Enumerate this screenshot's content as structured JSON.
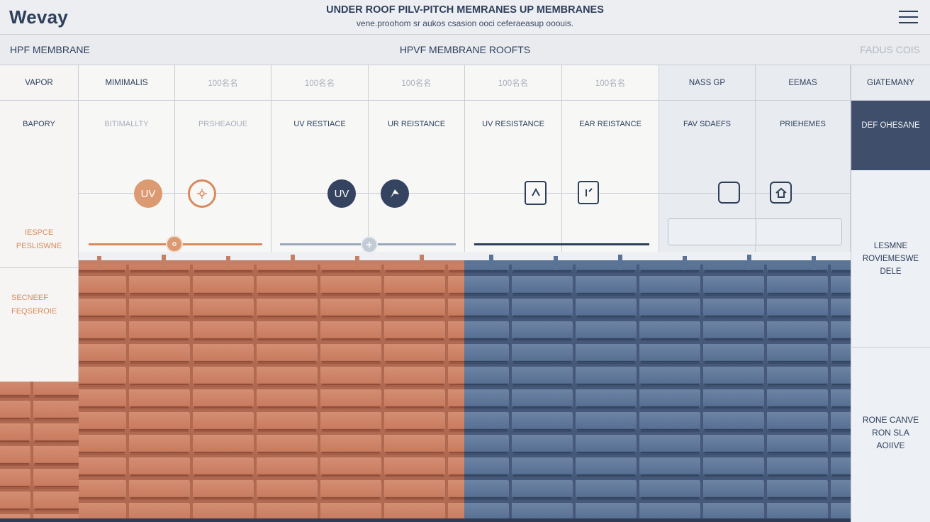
{
  "app": {
    "logo": "Wevay",
    "title": "UNDER ROOF PILV-PITCH MEMRANES UP MEMBRANES",
    "subtitle": "vene.proohom sr aukos csasion ooci ceferaeasup ooouis."
  },
  "subheader": {
    "left": "HPF MEMBRANE",
    "center": "HPVF MEMBRANE ROOFTS",
    "right": "FADUS COIS"
  },
  "left_panel": {
    "header": "VAPOR",
    "row2": "BAPORY",
    "block1_line1": "IESPCE",
    "block1_line2": "PESLISWNE",
    "block2_line1": "SECNEEF",
    "block2_line2": "FEQSEROIE"
  },
  "columns": [
    {
      "header": "MIMIMALIS",
      "row2": "BITIMALLTY",
      "header_faded": false,
      "row2_faded": true
    },
    {
      "header": "100名名",
      "row2": "PRSHEAOUE",
      "header_faded": true,
      "row2_faded": true
    },
    {
      "header": "100名名",
      "row2": "UV RESTIACE",
      "header_faded": true,
      "row2_faded": false
    },
    {
      "header": "100名名",
      "row2": "UR REISTANCE",
      "header_faded": true,
      "row2_faded": false
    },
    {
      "header": "100名名",
      "row2": "UV RESISTANCE",
      "header_faded": true,
      "row2_faded": false
    },
    {
      "header": "100名名",
      "row2": "EAR REISTANCE",
      "header_faded": true,
      "row2_faded": false
    },
    {
      "header": "NASS GP",
      "row2": "FAV SDAEFS",
      "header_faded": false,
      "row2_faded": false
    },
    {
      "header": "EEMAS",
      "row2": "PRIEHEMES",
      "header_faded": false,
      "row2_faded": false
    }
  ],
  "right_panel": {
    "header": "GIATEMANY",
    "active": "DEF OHESANE",
    "block1_line1": "LESMNE",
    "block1_line2": "ROVIEMESWE",
    "block1_line3": "DELE",
    "block2_line1": "RONE CANVE",
    "block2_line2": "RON SLA",
    "block2_line3": "AOIIVE"
  },
  "icons": {
    "uv_orange": "UV",
    "uv_dark": "UV"
  },
  "colors": {
    "navy": "#2e3f5c",
    "orange": "#d88a5c",
    "terracotta": "#cf8466",
    "slate_blue": "#5a7293",
    "active_panel": "#3f4f6b"
  }
}
